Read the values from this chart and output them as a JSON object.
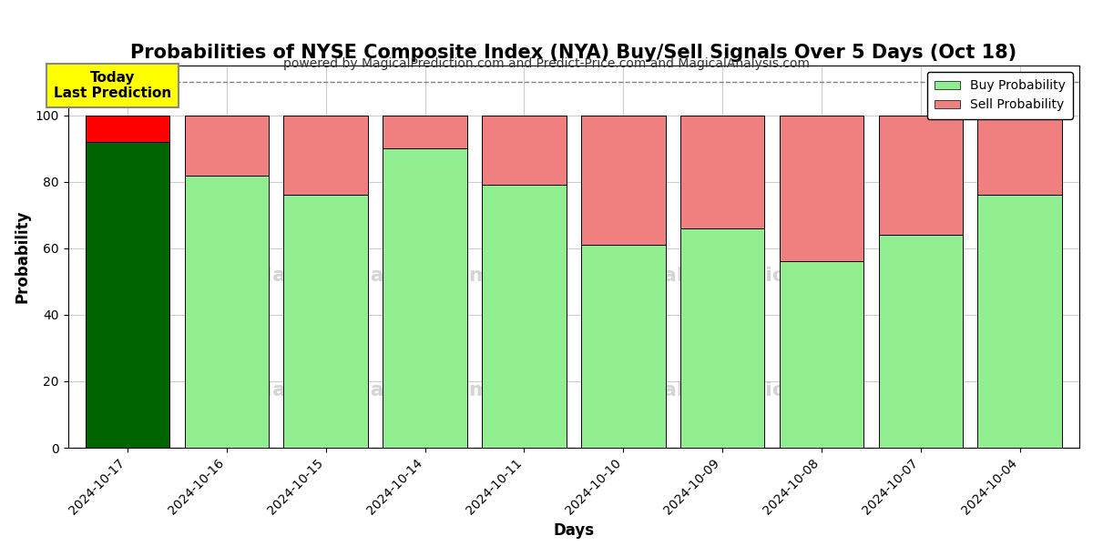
{
  "title": "Probabilities of NYSE Composite Index (NYA) Buy/Sell Signals Over 5 Days (Oct 18)",
  "subtitle": "powered by MagicalPrediction.com and Predict-Price.com and MagicalAnalysis.com",
  "xlabel": "Days",
  "ylabel": "Probability",
  "dates": [
    "2024-10-17",
    "2024-10-16",
    "2024-10-15",
    "2024-10-14",
    "2024-10-11",
    "2024-10-10",
    "2024-10-09",
    "2024-10-08",
    "2024-10-07",
    "2024-10-04"
  ],
  "buy_values": [
    92,
    82,
    76,
    90,
    79,
    61,
    66,
    56,
    64,
    76
  ],
  "sell_values": [
    8,
    18,
    24,
    10,
    21,
    39,
    34,
    44,
    36,
    24
  ],
  "today_index": 0,
  "buy_color_today": "#006400",
  "sell_color_today": "#FF0000",
  "buy_color_normal": "#90EE90",
  "sell_color_normal": "#F08080",
  "bar_edge_color": "#000000",
  "bar_width": 0.85,
  "ylim": [
    0,
    115
  ],
  "dashed_line_y": 110,
  "grid_color": "#cccccc",
  "bg_color": "#ffffff",
  "plot_bg_color": "#ffffff",
  "annotation_text": "Today\nLast Prediction",
  "annotation_bg": "#FFFF00",
  "annotation_border": "#AAAAAA",
  "legend_buy_label": "Buy Probability",
  "legend_sell_label": "Sell Probability",
  "title_fontsize": 15,
  "subtitle_fontsize": 10,
  "label_fontsize": 12,
  "tick_fontsize": 10
}
